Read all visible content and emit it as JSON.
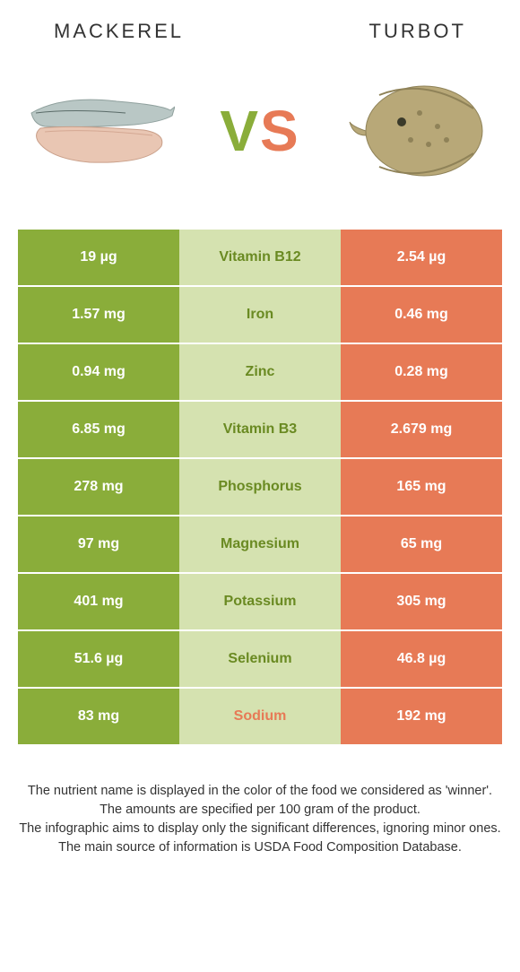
{
  "header": {
    "left_title": "MACKEREL",
    "right_title": "TURBOT",
    "vs_v": "V",
    "vs_s": "S"
  },
  "colors": {
    "green": "#8aad3a",
    "light_green_bg": "#d5e2b0",
    "light_green_text": "#6a8a22",
    "orange": "#e77a56",
    "background": "#ffffff"
  },
  "rows": [
    {
      "left": "19 µg",
      "nutrient": "Vitamin B12",
      "right": "2.54 µg",
      "winner": "left"
    },
    {
      "left": "1.57 mg",
      "nutrient": "Iron",
      "right": "0.46 mg",
      "winner": "left"
    },
    {
      "left": "0.94 mg",
      "nutrient": "Zinc",
      "right": "0.28 mg",
      "winner": "left"
    },
    {
      "left": "6.85 mg",
      "nutrient": "Vitamin B3",
      "right": "2.679 mg",
      "winner": "left"
    },
    {
      "left": "278 mg",
      "nutrient": "Phosphorus",
      "right": "165 mg",
      "winner": "left"
    },
    {
      "left": "97 mg",
      "nutrient": "Magnesium",
      "right": "65 mg",
      "winner": "left"
    },
    {
      "left": "401 mg",
      "nutrient": "Potassium",
      "right": "305 mg",
      "winner": "left"
    },
    {
      "left": "51.6 µg",
      "nutrient": "Selenium",
      "right": "46.8 µg",
      "winner": "left"
    },
    {
      "left": "83 mg",
      "nutrient": "Sodium",
      "right": "192 mg",
      "winner": "right"
    }
  ],
  "footer": {
    "line1": "The nutrient name is displayed in the color of the food we considered as 'winner'.",
    "line2": "The amounts are specified per 100 gram of the product.",
    "line3": "The infographic aims to display only the significant differences, ignoring minor ones.",
    "line4": "The main source of information is USDA Food Composition Database."
  }
}
